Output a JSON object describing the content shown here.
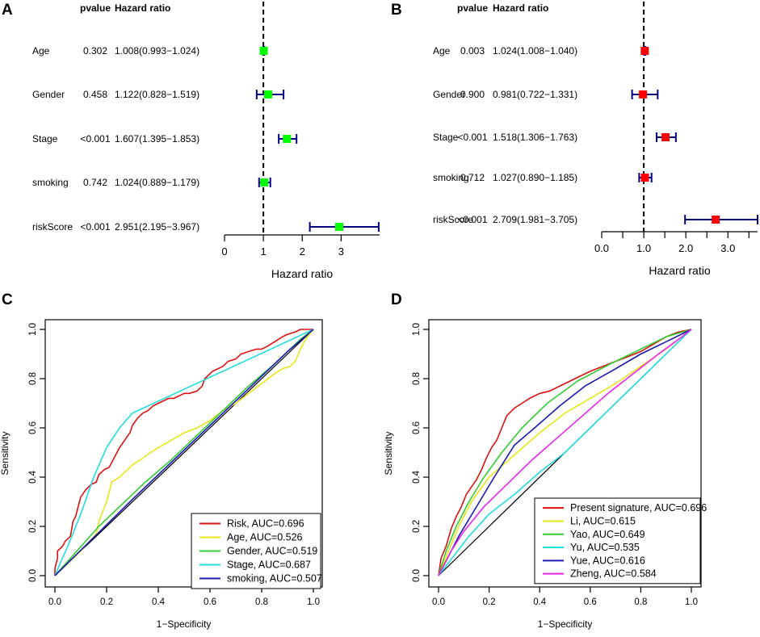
{
  "panel_labels": {
    "a": "A",
    "b": "B",
    "c": "C",
    "d": "D"
  },
  "forest_headers": {
    "pvalue": "pvalue",
    "hr": "Hazard ratio"
  },
  "colors": {
    "navy": "#000080",
    "green_box": "#00ff00",
    "red_box": "#ff0000"
  },
  "chart_data": [
    {
      "id": "A",
      "type": "forest",
      "title": "",
      "xlabel": "Hazard ratio",
      "xlim": [
        0,
        3.99
      ],
      "xticks": [
        {
          "v": 0,
          "label": "0"
        },
        {
          "v": 1,
          "label": "1"
        },
        {
          "v": 2,
          "label": "2"
        },
        {
          "v": 3,
          "label": "3"
        }
      ],
      "ref_line": 1,
      "box_color": "#00ff00",
      "rows": [
        {
          "name": "Age",
          "pvalue": "0.302",
          "hr_text": "1.008(0.993−1.024)",
          "hr": 1.008,
          "lo": 0.993,
          "hi": 1.024
        },
        {
          "name": "Gender",
          "pvalue": "0.458",
          "hr_text": "1.122(0.828−1.519)",
          "hr": 1.122,
          "lo": 0.828,
          "hi": 1.519
        },
        {
          "name": "Stage",
          "pvalue": "<0.001",
          "hr_text": "1.607(1.395−1.853)",
          "hr": 1.607,
          "lo": 1.395,
          "hi": 1.853
        },
        {
          "name": "smoking",
          "pvalue": "0.742",
          "hr_text": "1.024(0.889−1.179)",
          "hr": 1.024,
          "lo": 0.889,
          "hi": 1.179
        },
        {
          "name": "riskScore",
          "pvalue": "<0.001",
          "hr_text": "2.951(2.195−3.967)",
          "hr": 2.951,
          "lo": 2.195,
          "hi": 3.967
        }
      ]
    },
    {
      "id": "B",
      "type": "forest",
      "title": "",
      "xlabel": "Hazard ratio",
      "xlim": [
        0,
        3.705
      ],
      "xticks": [
        {
          "v": 0,
          "label": "0.0"
        },
        {
          "v": 1,
          "label": "1.0"
        },
        {
          "v": 2,
          "label": "2.0"
        },
        {
          "v": 3,
          "label": "3.0"
        }
      ],
      "minor_xticks": [
        0.5,
        1.5,
        2.5,
        3.5
      ],
      "ref_line": 1,
      "box_color": "#ff0000",
      "rows": [
        {
          "name": "Age",
          "pvalue": "0.003",
          "hr_text": "1.024(1.008−1.040)",
          "hr": 1.024,
          "lo": 1.008,
          "hi": 1.04
        },
        {
          "name": "Gender",
          "pvalue": "0.900",
          "hr_text": "0.981(0.722−1.331)",
          "hr": 0.981,
          "lo": 0.722,
          "hi": 1.331
        },
        {
          "name": "Stage",
          "pvalue": "<0.001",
          "hr_text": "1.518(1.306−1.763)",
          "hr": 1.518,
          "lo": 1.306,
          "hi": 1.763
        },
        {
          "name": "smoking",
          "pvalue": "0.712",
          "hr_text": "1.027(0.890−1.185)",
          "hr": 1.027,
          "lo": 0.89,
          "hi": 1.185
        },
        {
          "name": "riskScore",
          "pvalue": "<0.001",
          "hr_text": "2.709(1.981−3.705)",
          "hr": 2.709,
          "lo": 1.981,
          "hi": 3.705
        }
      ]
    },
    {
      "id": "C",
      "type": "line",
      "title": "",
      "xlabel": "1−Specificity",
      "ylabel": "Sensitivity",
      "xlim": [
        0,
        1
      ],
      "ylim": [
        0,
        1
      ],
      "ticks": [
        "0.0",
        "0.2",
        "0.4",
        "0.6",
        "0.8",
        "1.0"
      ],
      "legend_position": "bottom-right",
      "series": [
        {
          "name": "Risk, AUC=0.696",
          "color": "#dd1111",
          "points": [
            [
              0,
              0
            ],
            [
              0,
              0.03
            ],
            [
              0.01,
              0.07
            ],
            [
              0.01,
              0.1
            ],
            [
              0.03,
              0.12
            ],
            [
              0.04,
              0.14
            ],
            [
              0.06,
              0.16
            ],
            [
              0.07,
              0.22
            ],
            [
              0.08,
              0.24
            ],
            [
              0.09,
              0.28
            ],
            [
              0.1,
              0.32
            ],
            [
              0.12,
              0.35
            ],
            [
              0.14,
              0.37
            ],
            [
              0.16,
              0.38
            ],
            [
              0.17,
              0.41
            ],
            [
              0.19,
              0.43
            ],
            [
              0.21,
              0.44
            ],
            [
              0.23,
              0.48
            ],
            [
              0.25,
              0.52
            ],
            [
              0.27,
              0.55
            ],
            [
              0.29,
              0.58
            ],
            [
              0.3,
              0.61
            ],
            [
              0.32,
              0.64
            ],
            [
              0.34,
              0.66
            ],
            [
              0.36,
              0.67
            ],
            [
              0.38,
              0.69
            ],
            [
              0.4,
              0.7
            ],
            [
              0.42,
              0.71
            ],
            [
              0.44,
              0.72
            ],
            [
              0.46,
              0.72
            ],
            [
              0.48,
              0.73
            ],
            [
              0.5,
              0.74
            ],
            [
              0.52,
              0.74
            ],
            [
              0.55,
              0.75
            ],
            [
              0.57,
              0.77
            ],
            [
              0.58,
              0.8
            ],
            [
              0.6,
              0.82
            ],
            [
              0.61,
              0.83
            ],
            [
              0.63,
              0.84
            ],
            [
              0.65,
              0.85
            ],
            [
              0.67,
              0.87
            ],
            [
              0.7,
              0.88
            ],
            [
              0.72,
              0.9
            ],
            [
              0.75,
              0.91
            ],
            [
              0.78,
              0.92
            ],
            [
              0.8,
              0.92
            ],
            [
              0.82,
              0.93
            ],
            [
              0.85,
              0.95
            ],
            [
              0.88,
              0.97
            ],
            [
              0.9,
              0.98
            ],
            [
              0.93,
              0.99
            ],
            [
              0.95,
              1.0
            ],
            [
              1.0,
              1.0
            ]
          ]
        },
        {
          "name": "Age, AUC=0.526",
          "color": "#e6e619",
          "points": [
            [
              0,
              0
            ],
            [
              0.04,
              0.04
            ],
            [
              0.1,
              0.1
            ],
            [
              0.16,
              0.17
            ],
            [
              0.17,
              0.22
            ],
            [
              0.2,
              0.3
            ],
            [
              0.22,
              0.38
            ],
            [
              0.25,
              0.4
            ],
            [
              0.27,
              0.42
            ],
            [
              0.3,
              0.45
            ],
            [
              0.33,
              0.47
            ],
            [
              0.37,
              0.5
            ],
            [
              0.4,
              0.52
            ],
            [
              0.45,
              0.55
            ],
            [
              0.5,
              0.58
            ],
            [
              0.55,
              0.6
            ],
            [
              0.6,
              0.63
            ],
            [
              0.65,
              0.67
            ],
            [
              0.7,
              0.7
            ],
            [
              0.75,
              0.74
            ],
            [
              0.8,
              0.78
            ],
            [
              0.85,
              0.82
            ],
            [
              0.88,
              0.84
            ],
            [
              0.91,
              0.85
            ],
            [
              0.93,
              0.87
            ],
            [
              0.95,
              0.92
            ],
            [
              0.97,
              0.96
            ],
            [
              1.0,
              1.0
            ]
          ]
        },
        {
          "name": "Gender, AUC=0.519",
          "color": "#33cc33",
          "points": [
            [
              0,
              0
            ],
            [
              0.17,
              0.2
            ],
            [
              0.25,
              0.28
            ],
            [
              0.35,
              0.38
            ],
            [
              0.45,
              0.47
            ],
            [
              0.55,
              0.57
            ],
            [
              0.65,
              0.67
            ],
            [
              0.75,
              0.77
            ],
            [
              0.85,
              0.86
            ],
            [
              0.95,
              0.96
            ],
            [
              1.0,
              1.0
            ]
          ]
        },
        {
          "name": "Stage, AUC=0.687",
          "color": "#22dddd",
          "points": [
            [
              0,
              0
            ],
            [
              0.02,
              0.05
            ],
            [
              0.05,
              0.12
            ],
            [
              0.1,
              0.25
            ],
            [
              0.15,
              0.4
            ],
            [
              0.2,
              0.52
            ],
            [
              0.25,
              0.6
            ],
            [
              0.3,
              0.66
            ],
            [
              1.0,
              1.0
            ]
          ]
        },
        {
          "name": "smoking, AUC=0.507",
          "color": "#1a1ab3",
          "points": [
            [
              0,
              0
            ],
            [
              0.3,
              0.31
            ],
            [
              0.6,
              0.61
            ],
            [
              0.9,
              0.91
            ],
            [
              1.0,
              1.0
            ]
          ]
        }
      ]
    },
    {
      "id": "D",
      "type": "line",
      "title": "",
      "xlabel": "1−Specificity",
      "ylabel": "Sensitivity",
      "xlim": [
        0,
        1
      ],
      "ylim": [
        0,
        1
      ],
      "ticks": [
        "0.0",
        "0.2",
        "0.4",
        "0.6",
        "0.8",
        "1.0"
      ],
      "legend_position": "bottom-right",
      "series": [
        {
          "name": "Present signature, AUC=0.696",
          "color": "#dd1111",
          "points": [
            [
              0,
              0
            ],
            [
              0.01,
              0.07
            ],
            [
              0.03,
              0.12
            ],
            [
              0.05,
              0.19
            ],
            [
              0.07,
              0.24
            ],
            [
              0.09,
              0.28
            ],
            [
              0.11,
              0.33
            ],
            [
              0.13,
              0.36
            ],
            [
              0.15,
              0.39
            ],
            [
              0.17,
              0.43
            ],
            [
              0.19,
              0.48
            ],
            [
              0.21,
              0.52
            ],
            [
              0.23,
              0.55
            ],
            [
              0.25,
              0.6
            ],
            [
              0.27,
              0.65
            ],
            [
              0.3,
              0.68
            ],
            [
              0.33,
              0.7
            ],
            [
              0.36,
              0.72
            ],
            [
              0.4,
              0.74
            ],
            [
              0.44,
              0.75
            ],
            [
              0.48,
              0.77
            ],
            [
              0.52,
              0.79
            ],
            [
              0.56,
              0.81
            ],
            [
              0.6,
              0.83
            ],
            [
              0.65,
              0.85
            ],
            [
              0.7,
              0.87
            ],
            [
              0.75,
              0.89
            ],
            [
              0.8,
              0.91
            ],
            [
              0.85,
              0.94
            ],
            [
              0.9,
              0.97
            ],
            [
              0.95,
              0.99
            ],
            [
              1.0,
              1.0
            ]
          ]
        },
        {
          "name": "Li, AUC=0.615",
          "color": "#e6e619",
          "points": [
            [
              0,
              0
            ],
            [
              0.04,
              0.1
            ],
            [
              0.08,
              0.2
            ],
            [
              0.13,
              0.3
            ],
            [
              0.2,
              0.4
            ],
            [
              0.3,
              0.49
            ],
            [
              0.4,
              0.58
            ],
            [
              0.5,
              0.66
            ],
            [
              0.6,
              0.72
            ],
            [
              0.7,
              0.78
            ],
            [
              0.8,
              0.85
            ],
            [
              0.9,
              0.92
            ],
            [
              1.0,
              1.0
            ]
          ]
        },
        {
          "name": "Yao, AUC=0.649",
          "color": "#33cc33",
          "points": [
            [
              0,
              0
            ],
            [
              0.03,
              0.1
            ],
            [
              0.07,
              0.2
            ],
            [
              0.12,
              0.3
            ],
            [
              0.18,
              0.4
            ],
            [
              0.25,
              0.5
            ],
            [
              0.33,
              0.6
            ],
            [
              0.43,
              0.7
            ],
            [
              0.55,
              0.79
            ],
            [
              0.68,
              0.86
            ],
            [
              0.8,
              0.92
            ],
            [
              0.9,
              0.97
            ],
            [
              1.0,
              1.0
            ]
          ]
        },
        {
          "name": "Yu, AUC=0.535",
          "color": "#22dddd",
          "points": [
            [
              0,
              0
            ],
            [
              0.06,
              0.08
            ],
            [
              0.12,
              0.16
            ],
            [
              0.2,
              0.25
            ],
            [
              0.3,
              0.33
            ],
            [
              0.4,
              0.42
            ],
            [
              0.5,
              0.5
            ],
            [
              0.6,
              0.6
            ],
            [
              0.7,
              0.7
            ],
            [
              0.8,
              0.8
            ],
            [
              0.9,
              0.9
            ],
            [
              1.0,
              1.0
            ]
          ]
        },
        {
          "name": "Yue, AUC=0.616",
          "color": "#1a1ab3",
          "points": [
            [
              0,
              0
            ],
            [
              0.03,
              0.06
            ],
            [
              0.08,
              0.16
            ],
            [
              0.15,
              0.28
            ],
            [
              0.22,
              0.4
            ],
            [
              0.3,
              0.53
            ],
            [
              0.38,
              0.6
            ],
            [
              0.48,
              0.69
            ],
            [
              0.58,
              0.77
            ],
            [
              0.7,
              0.84
            ],
            [
              0.8,
              0.9
            ],
            [
              0.9,
              0.95
            ],
            [
              1.0,
              1.0
            ]
          ]
        },
        {
          "name": "Zheng, AUC=0.584",
          "color": "#ee22ee",
          "points": [
            [
              0,
              0
            ],
            [
              0.05,
              0.1
            ],
            [
              0.1,
              0.18
            ],
            [
              0.18,
              0.28
            ],
            [
              0.27,
              0.37
            ],
            [
              0.37,
              0.47
            ],
            [
              0.47,
              0.56
            ],
            [
              0.57,
              0.65
            ],
            [
              0.67,
              0.74
            ],
            [
              0.77,
              0.82
            ],
            [
              0.87,
              0.9
            ],
            [
              0.95,
              0.96
            ],
            [
              1.0,
              1.0
            ]
          ]
        }
      ]
    }
  ]
}
